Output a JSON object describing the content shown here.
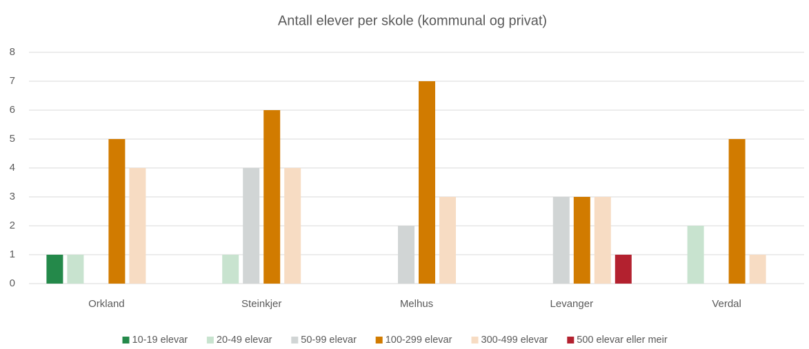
{
  "chart_data": {
    "type": "bar",
    "title": "Antall elever per skole (kommunal og privat)",
    "categories": [
      "Orkland",
      "Steinkjer",
      "Melhus",
      "Levanger",
      "Verdal"
    ],
    "series": [
      {
        "name": "10-19 elevar",
        "color": "#24894a",
        "values": [
          1,
          0,
          0,
          0,
          0
        ]
      },
      {
        "name": "20-49 elevar",
        "color": "#c8e3cf",
        "values": [
          1,
          1,
          0,
          0,
          2
        ]
      },
      {
        "name": "50-99 elevar",
        "color": "#d1d5d5",
        "values": [
          0,
          4,
          2,
          3,
          0
        ]
      },
      {
        "name": "100-299 elevar",
        "color": "#d17b00",
        "values": [
          5,
          6,
          7,
          3,
          5
        ]
      },
      {
        "name": "300-499 elevar",
        "color": "#f7dcc3",
        "values": [
          4,
          4,
          3,
          3,
          1
        ]
      },
      {
        "name": "500 elevar eller meir",
        "color": "#b3212f",
        "values": [
          0,
          0,
          0,
          1,
          0
        ]
      }
    ],
    "ylim": [
      0,
      8
    ],
    "yticks": [
      0,
      1,
      2,
      3,
      4,
      5,
      6,
      7,
      8
    ],
    "grid": true,
    "legend": "bottom"
  }
}
